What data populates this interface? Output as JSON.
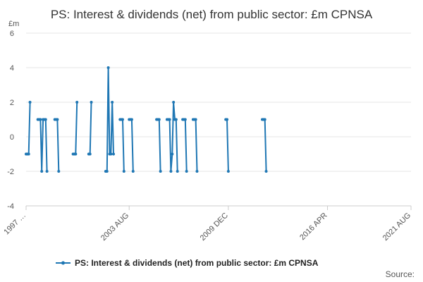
{
  "chart_data": {
    "type": "line",
    "title": "PS: Interest & dividends (net) from public sector: £m CPNSA",
    "ylabel": "£m",
    "xlabel": "",
    "ylim": [
      -4,
      6
    ],
    "yticks": [
      6,
      4,
      2,
      0,
      -2,
      -4
    ],
    "x_range": [
      "1997-01",
      "2021-08"
    ],
    "x_ticks": [
      {
        "date": "1997-01",
        "label": "1997 …"
      },
      {
        "date": "2003-08",
        "label": "2003 AUG"
      },
      {
        "date": "2009-12",
        "label": "2009 DEC"
      },
      {
        "date": "2016-04",
        "label": "2016 APR"
      },
      {
        "date": "2021-08",
        "label": "2021 AUG"
      }
    ],
    "grid": true,
    "legend_position": "bottom",
    "series": [
      {
        "name": "PS: Interest & dividends (net) from public sector: £m CPNSA",
        "color": "#1f77b4",
        "segments": [
          [
            [
              "1997-01",
              -1
            ],
            [
              "1997-02",
              -1
            ],
            [
              "1997-03",
              -1
            ],
            [
              "1997-04",
              2
            ]
          ],
          [
            [
              "1997-10",
              1
            ],
            [
              "1997-11",
              1
            ],
            [
              "1997-12",
              1
            ],
            [
              "1998-01",
              -2
            ],
            [
              "1998-02",
              1
            ],
            [
              "1998-03",
              1
            ],
            [
              "1998-04",
              1
            ],
            [
              "1998-05",
              -2
            ]
          ],
          [
            [
              "1998-11",
              1
            ],
            [
              "1998-12",
              1
            ],
            [
              "1999-01",
              1
            ],
            [
              "1999-02",
              -2
            ]
          ],
          [
            [
              "2000-01",
              -1
            ],
            [
              "2000-02",
              -1
            ],
            [
              "2000-03",
              -1
            ],
            [
              "2000-04",
              2
            ]
          ],
          [
            [
              "2001-01",
              -1
            ],
            [
              "2001-02",
              -1
            ],
            [
              "2001-03",
              2
            ]
          ],
          [
            [
              "2002-02",
              -2
            ],
            [
              "2002-03",
              -2
            ],
            [
              "2002-04",
              4
            ],
            [
              "2002-05",
              -1
            ],
            [
              "2002-06",
              -1
            ],
            [
              "2002-07",
              2
            ],
            [
              "2002-08",
              -1
            ]
          ],
          [
            [
              "2003-01",
              1
            ],
            [
              "2003-02",
              1
            ],
            [
              "2003-03",
              1
            ],
            [
              "2003-04",
              -2
            ]
          ],
          [
            [
              "2003-08",
              1
            ],
            [
              "2003-09",
              1
            ],
            [
              "2003-10",
              1
            ],
            [
              "2003-11",
              -2
            ]
          ],
          [
            [
              "2005-05",
              1
            ],
            [
              "2005-06",
              1
            ],
            [
              "2005-07",
              1
            ],
            [
              "2005-08",
              -2
            ]
          ],
          [
            [
              "2006-01",
              1
            ],
            [
              "2006-02",
              1
            ],
            [
              "2006-03",
              1
            ],
            [
              "2006-04",
              -2
            ],
            [
              "2006-05",
              -1
            ],
            [
              "2006-06",
              2
            ],
            [
              "2006-07",
              1
            ],
            [
              "2006-08",
              1
            ],
            [
              "2006-09",
              -2
            ]
          ],
          [
            [
              "2007-01",
              1
            ],
            [
              "2007-02",
              1
            ],
            [
              "2007-03",
              1
            ],
            [
              "2007-04",
              -2
            ]
          ],
          [
            [
              "2007-09",
              1
            ],
            [
              "2007-10",
              1
            ],
            [
              "2007-11",
              1
            ],
            [
              "2007-12",
              -2
            ]
          ],
          [
            [
              "2009-10",
              1
            ],
            [
              "2009-11",
              1
            ],
            [
              "2009-12",
              -2
            ]
          ],
          [
            [
              "2012-02",
              1
            ],
            [
              "2012-03",
              1
            ],
            [
              "2012-04",
              1
            ],
            [
              "2012-05",
              -2
            ]
          ]
        ]
      }
    ]
  },
  "legend": {
    "label": "PS: Interest & dividends (net) from public sector: £m CPNSA"
  },
  "footer": {
    "source_label": "Source:"
  }
}
